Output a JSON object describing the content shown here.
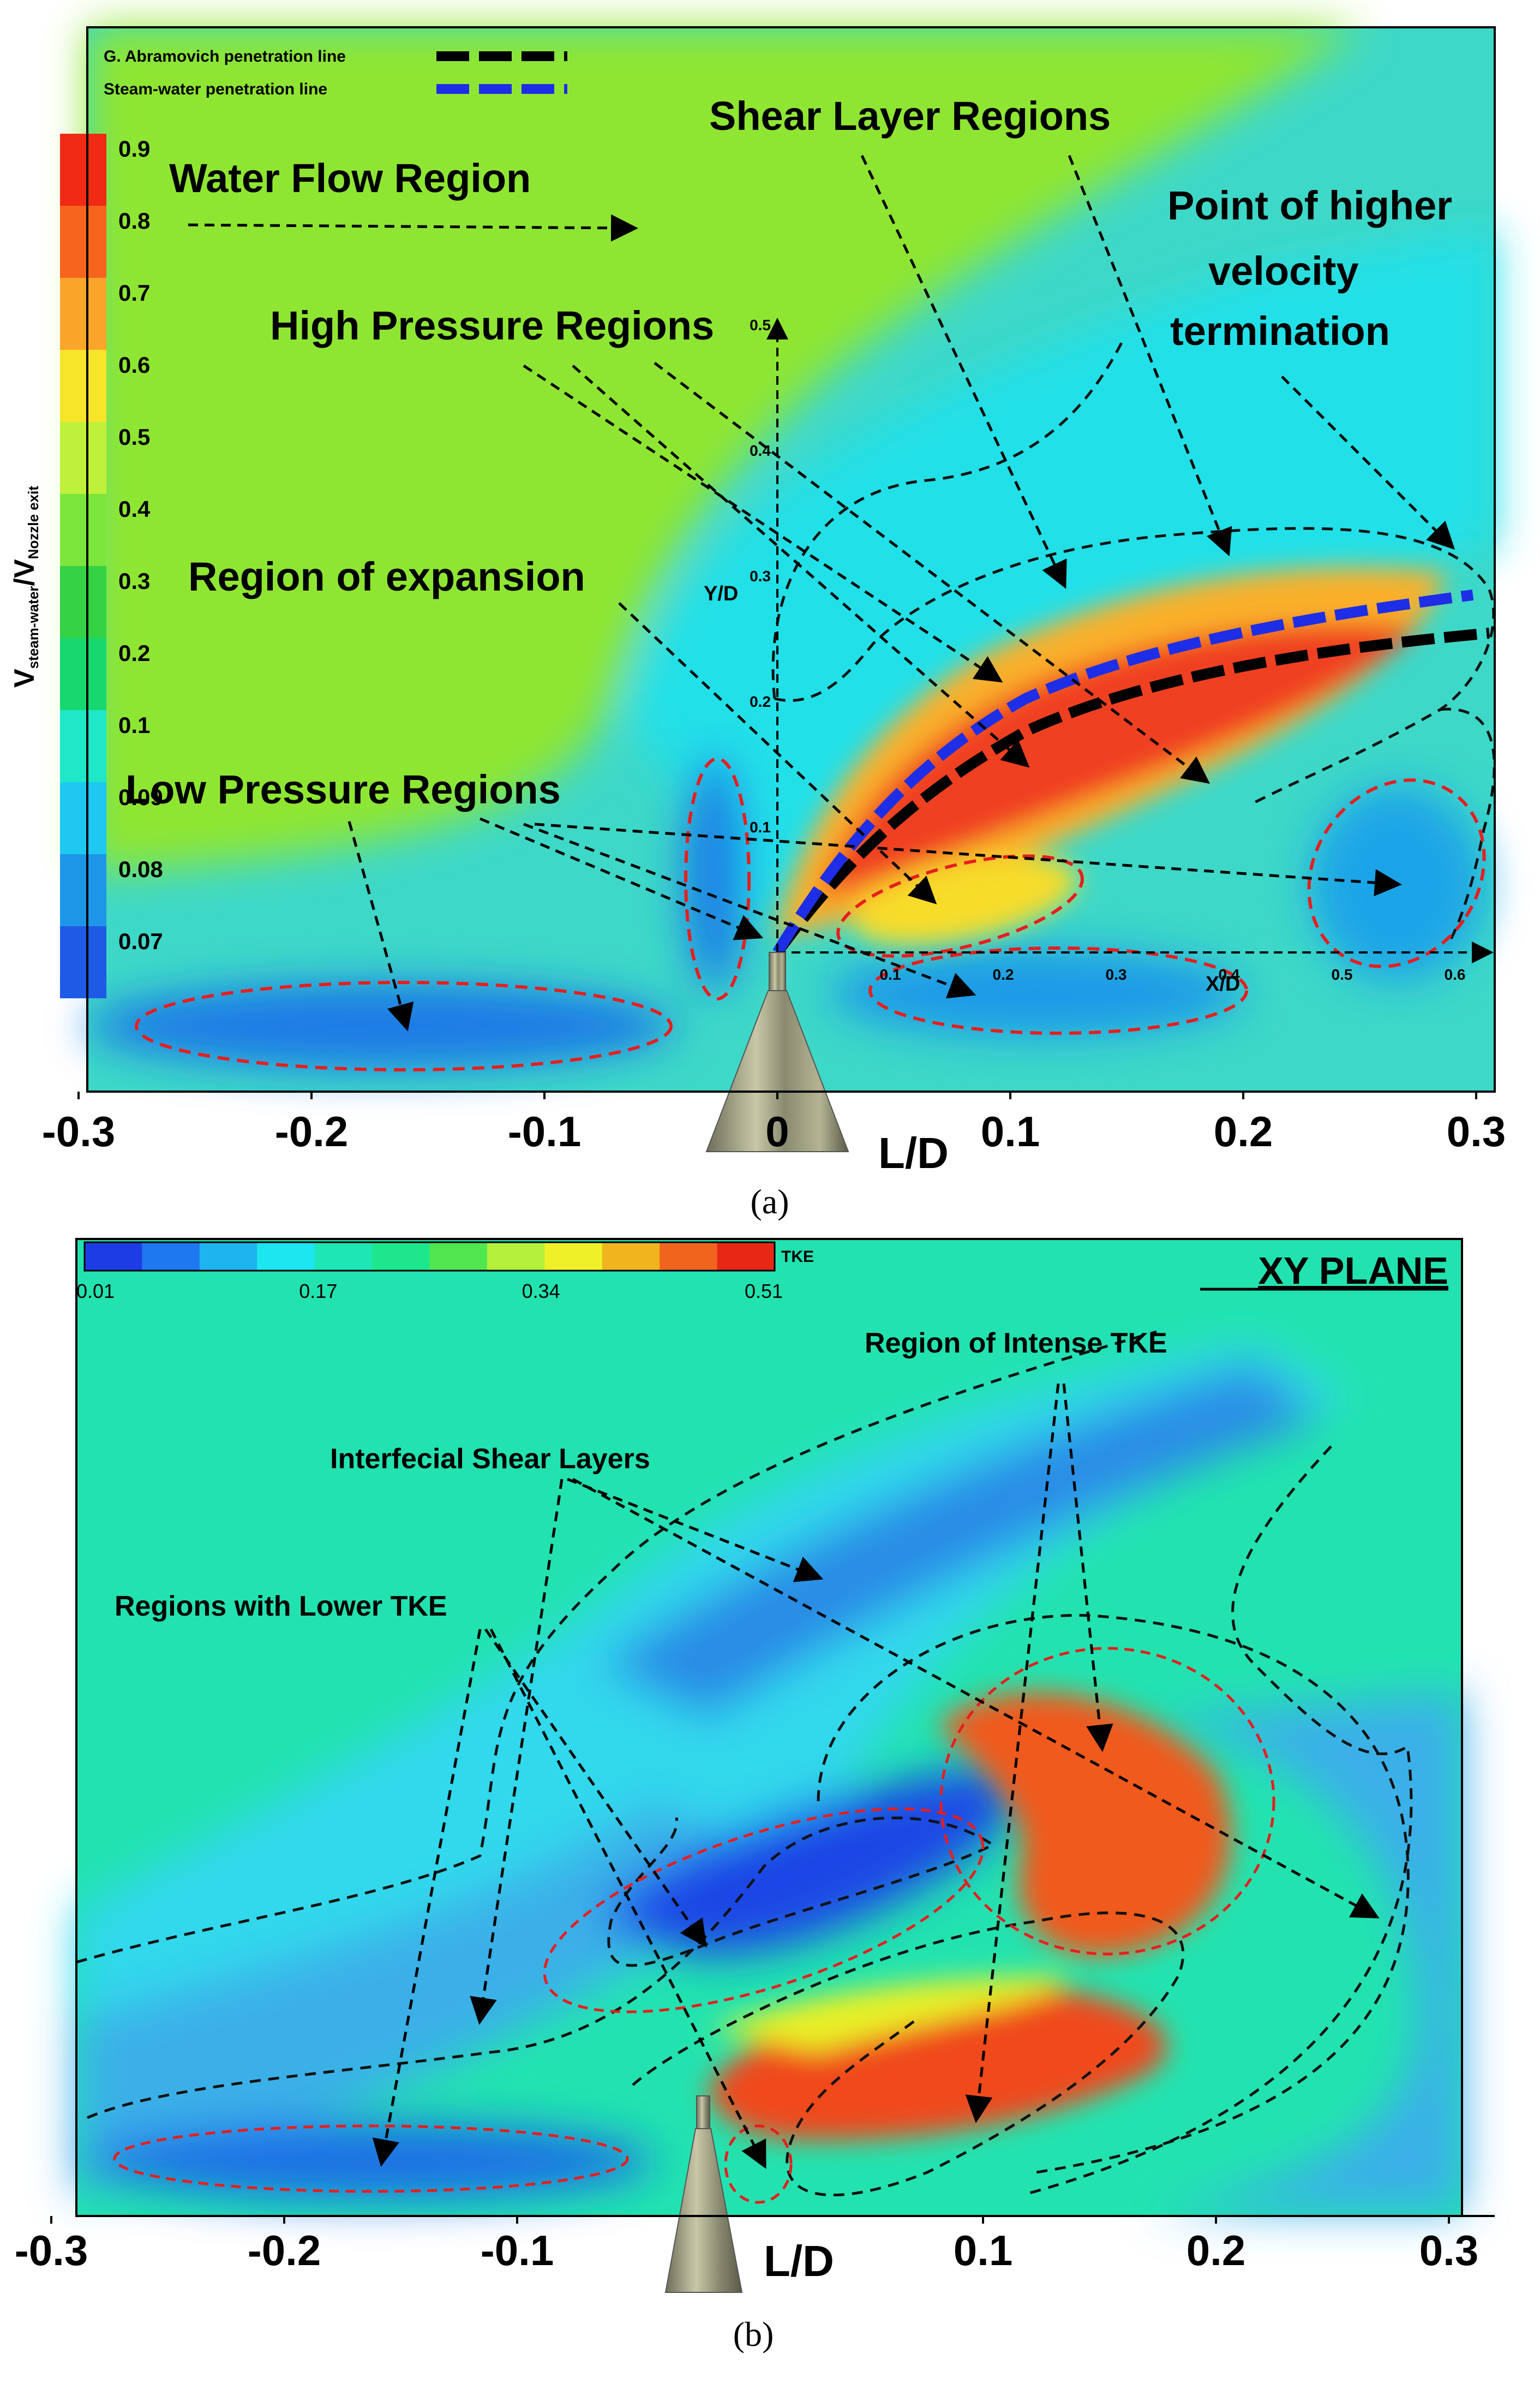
{
  "panel_a": {
    "caption": "(a)",
    "legend_lines": [
      {
        "label": "G. Abramovich penetration line",
        "color": "#000000"
      },
      {
        "label": "Steam-water penetration line",
        "color": "#1e2ee6"
      }
    ],
    "colorbar": {
      "title_main": "V",
      "title_sub1": "steam-water",
      "title_slash": "/V",
      "title_sub2": "Nozzle exit",
      "ticks": [
        "0.9",
        "0.8",
        "0.7",
        "0.6",
        "0.5",
        "0.4",
        "0.3",
        "0.2",
        "0.1",
        "0.09",
        "0.08",
        "0.07"
      ],
      "colors": [
        "#f02a14",
        "#f7641e",
        "#f9a52a",
        "#f7e52a",
        "#bff03a",
        "#7de63c",
        "#34d244",
        "#16d86e",
        "#1ee8c8",
        "#1ec8f0",
        "#1e96e8",
        "#1e5ae6"
      ]
    },
    "annotations": {
      "water_flow": "Water Flow Region",
      "shear_layer": "Shear Layer Regions",
      "point_higher_1": "Point of higher",
      "point_higher_2": "velocity",
      "point_higher_3": "termination",
      "high_pressure": "High Pressure Regions",
      "expansion": "Region of expansion",
      "low_pressure": "Low Pressure Regions"
    },
    "inner_axes": {
      "y_label": "Y/D",
      "y_ticks": [
        "0.1",
        "0.2",
        "0.3",
        "0.4",
        "0.5"
      ],
      "x_label": "X/D",
      "x_ticks": [
        "0.1",
        "0.2",
        "0.3",
        "0.4",
        "0.5",
        "0.6"
      ]
    },
    "x_axis": {
      "label": "L/D",
      "ticks": [
        "-0.3",
        "-0.2",
        "-0.1",
        "0",
        "0.1",
        "0.2",
        "0.3"
      ]
    }
  },
  "panel_b": {
    "caption": "(b)",
    "colorbar": {
      "title": "TKE",
      "tick_labels": [
        "0.01",
        "0.17",
        "0.34",
        "0.51"
      ],
      "colors": [
        "#1e3ce6",
        "#1e78f0",
        "#1eb4f0",
        "#1ee6f0",
        "#1ee6b4",
        "#1ee68c",
        "#50e650",
        "#b4f03c",
        "#f0f028",
        "#f0b41e",
        "#f0641e",
        "#e62814"
      ]
    },
    "plane_label": "XY PLANE",
    "annotations": {
      "intense_tke": "Region of Intense TKE",
      "interfacial": "Interfecial Shear Layers",
      "lower_tke": "Regions with Lower TKE"
    },
    "x_axis": {
      "label": "L/D",
      "ticks": [
        "-0.3",
        "-0.2",
        "-0.1",
        "0.1",
        "0.2",
        "0.3"
      ]
    }
  }
}
